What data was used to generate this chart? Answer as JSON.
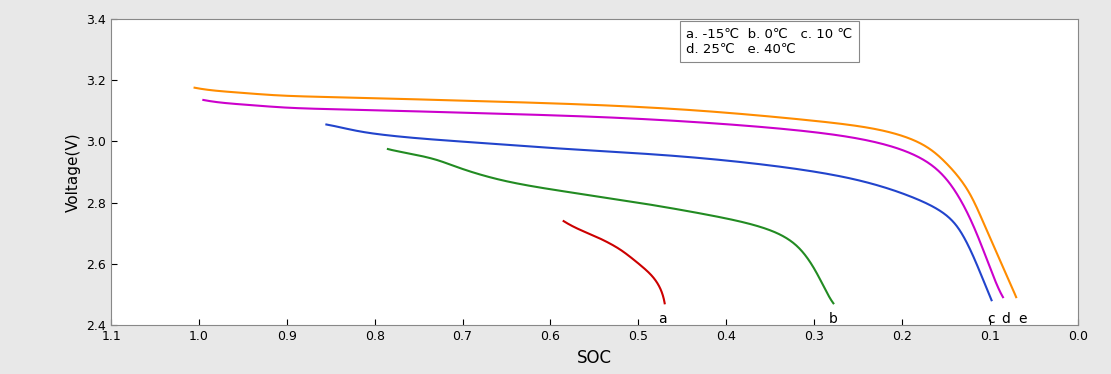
{
  "xlabel": "SOC",
  "ylabel": "Voltage(V)",
  "xlim": [
    1.1,
    0.0
  ],
  "ylim": [
    2.4,
    3.4
  ],
  "xticks": [
    1.1,
    1.0,
    0.9,
    0.8,
    0.7,
    0.6,
    0.5,
    0.4,
    0.3,
    0.2,
    0.1,
    0.0
  ],
  "yticks": [
    2.4,
    2.6,
    2.8,
    3.0,
    3.2,
    3.4
  ],
  "curves": [
    {
      "name": "a",
      "temp": "-15",
      "color": "#cc0000",
      "points_soc": [
        0.585,
        0.565,
        0.545,
        0.525,
        0.51,
        0.495,
        0.48,
        0.47
      ],
      "points_v": [
        2.74,
        2.71,
        2.685,
        2.655,
        2.625,
        2.59,
        2.545,
        2.472
      ],
      "label_soc": 0.472,
      "label_v": 2.443
    },
    {
      "name": "b",
      "temp": "0",
      "color": "#228B22",
      "points_soc": [
        0.785,
        0.76,
        0.73,
        0.7,
        0.65,
        0.58,
        0.5,
        0.42,
        0.36,
        0.32,
        0.295,
        0.278
      ],
      "points_v": [
        2.975,
        2.96,
        2.94,
        2.91,
        2.87,
        2.835,
        2.8,
        2.76,
        2.72,
        2.66,
        2.56,
        2.472
      ],
      "label_soc": 0.278,
      "label_v": 2.443
    },
    {
      "name": "c",
      "temp": "10",
      "color": "#2244cc",
      "points_soc": [
        0.855,
        0.83,
        0.8,
        0.75,
        0.68,
        0.58,
        0.47,
        0.36,
        0.26,
        0.19,
        0.15,
        0.13,
        0.115,
        0.098
      ],
      "points_v": [
        3.055,
        3.04,
        3.025,
        3.01,
        2.995,
        2.975,
        2.955,
        2.925,
        2.88,
        2.82,
        2.76,
        2.69,
        2.6,
        2.482
      ],
      "label_soc": 0.098,
      "label_v": 2.443
    },
    {
      "name": "d",
      "temp": "25",
      "color": "#cc00cc",
      "points_soc": [
        0.995,
        0.97,
        0.94,
        0.9,
        0.85,
        0.78,
        0.68,
        0.55,
        0.42,
        0.3,
        0.22,
        0.17,
        0.14,
        0.118,
        0.1,
        0.085
      ],
      "points_v": [
        3.135,
        3.125,
        3.118,
        3.11,
        3.105,
        3.1,
        3.092,
        3.08,
        3.06,
        3.03,
        2.99,
        2.93,
        2.84,
        2.72,
        2.59,
        2.492
      ],
      "label_soc": 0.082,
      "label_v": 2.443
    },
    {
      "name": "e",
      "temp": "40",
      "color": "#ff8c00",
      "points_soc": [
        1.005,
        0.98,
        0.95,
        0.91,
        0.86,
        0.79,
        0.69,
        0.56,
        0.43,
        0.31,
        0.23,
        0.18,
        0.15,
        0.125,
        0.105,
        0.085,
        0.07
      ],
      "points_v": [
        3.175,
        3.165,
        3.158,
        3.15,
        3.145,
        3.14,
        3.132,
        3.12,
        3.1,
        3.07,
        3.04,
        2.995,
        2.93,
        2.84,
        2.72,
        2.59,
        2.492
      ],
      "label_soc": 0.063,
      "label_v": 2.443
    }
  ],
  "legend_text": "a. -15℃  b. 0℃   c. 10 ℃\nd. 25℃   e. 40℃",
  "fig_background": "#ffffff",
  "ax_background": "#ffffff",
  "border_color": "#888888",
  "outer_background": "#e8e8e8"
}
